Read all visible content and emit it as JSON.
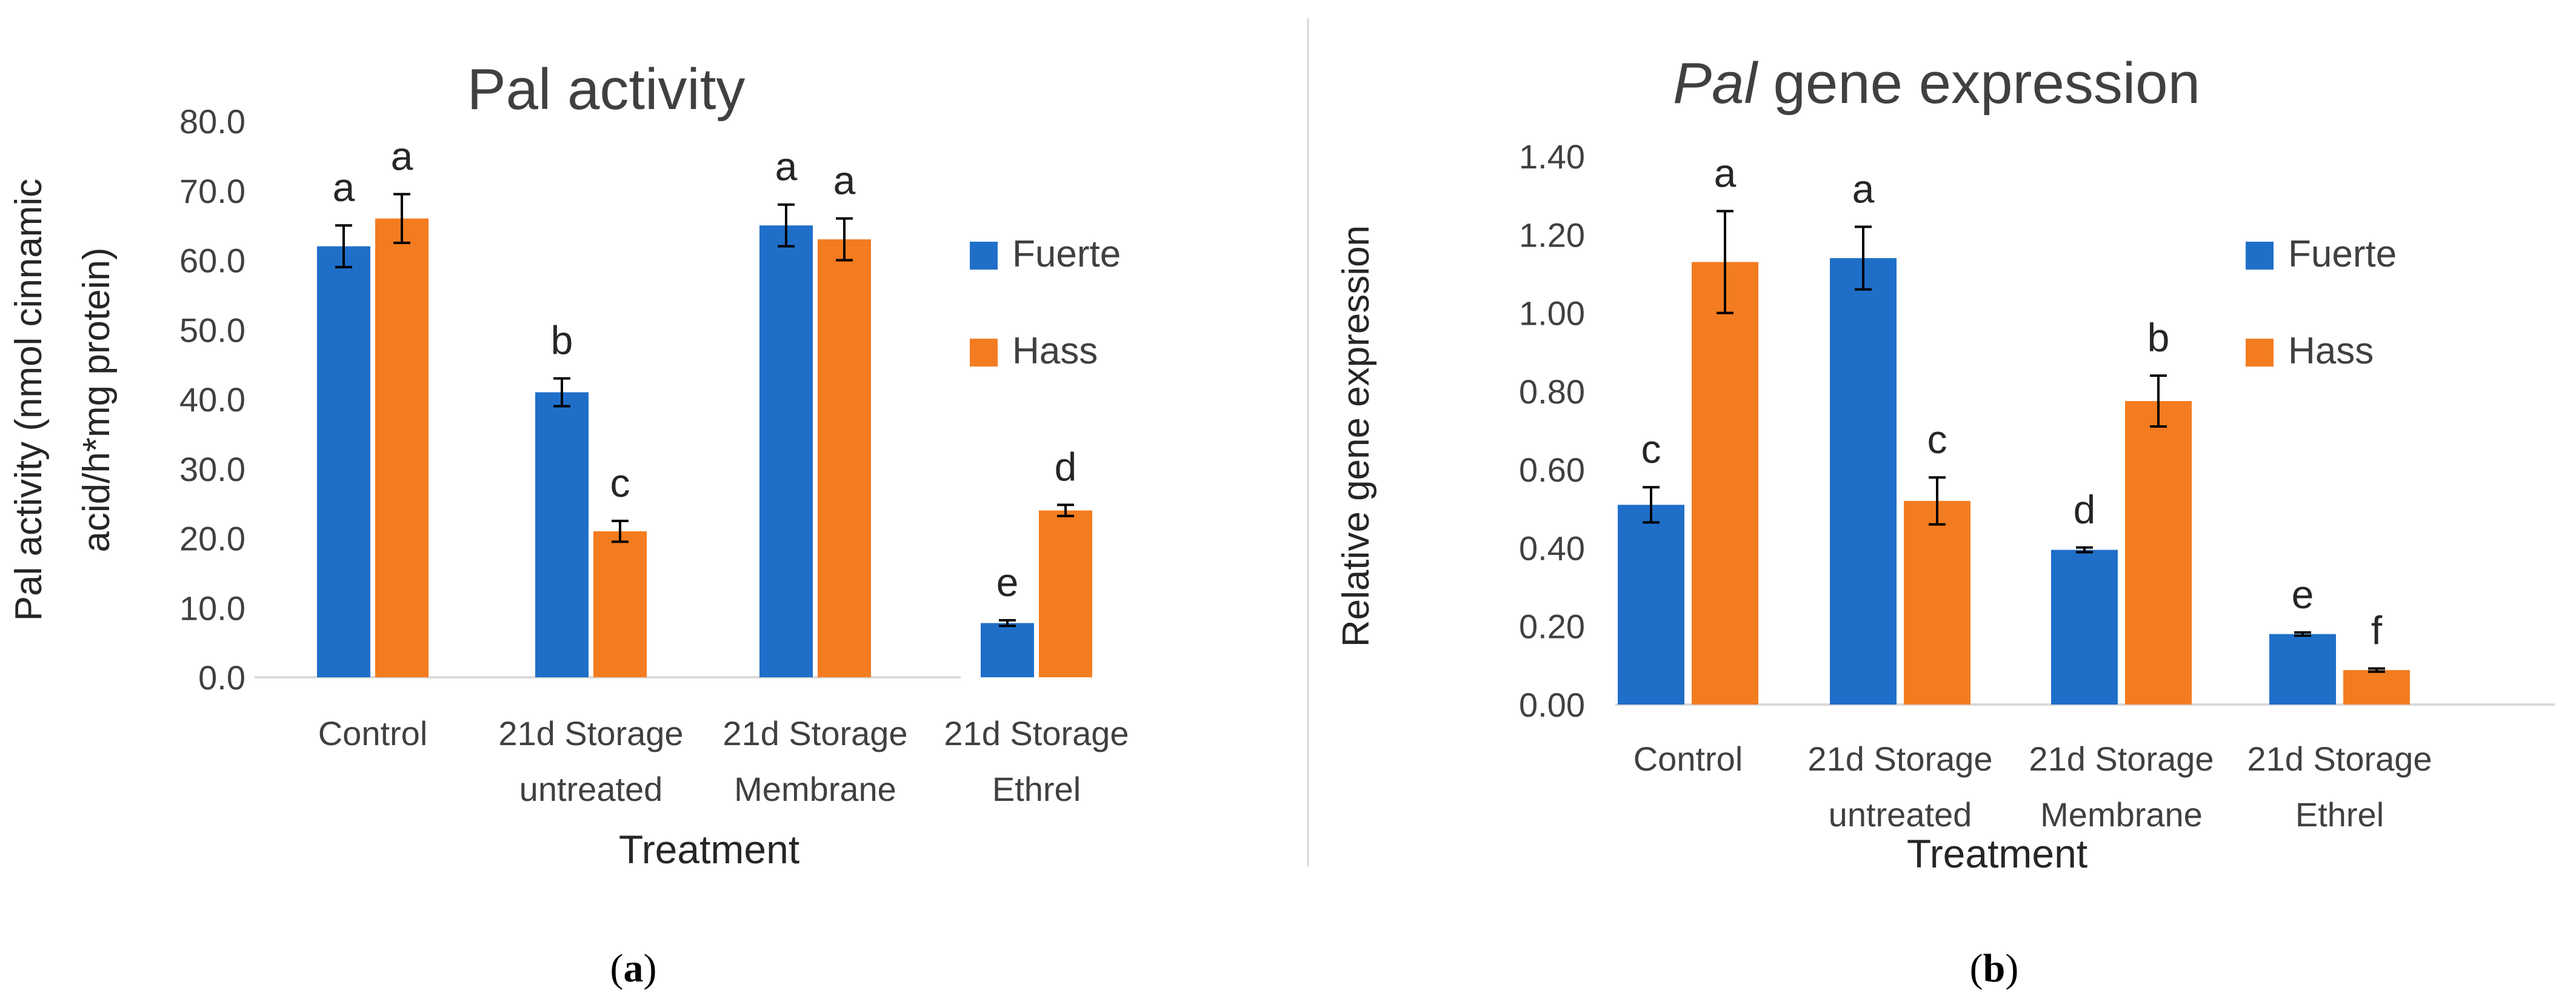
{
  "chart_data": [
    {
      "type": "bar",
      "panel_label": "(a)",
      "title": "Pal activity",
      "title_italic_part": "",
      "xlabel": "Treatment",
      "ylabel_lines": [
        "Pal activity (nmol cinnamic",
        "acid/h*mg protein)"
      ],
      "ylim": [
        0,
        80
      ],
      "ytick_step": 10,
      "ytick_labels": [
        "0.0",
        "10.0",
        "20.0",
        "30.0",
        "40.0",
        "50.0",
        "60.0",
        "70.0",
        "80.0"
      ],
      "categories": [
        [
          "Control"
        ],
        [
          "21d Storage",
          "untreated"
        ],
        [
          "21d Storage",
          "Membrane"
        ],
        [
          "21d Storage",
          "Ethrel"
        ]
      ],
      "series": [
        {
          "name": "Fuerte",
          "color": "#1f6fc9",
          "values": [
            62.0,
            41.0,
            65.0,
            7.8
          ],
          "errors": [
            3.0,
            2.0,
            3.0,
            0.4
          ],
          "sig": [
            "a",
            "b",
            "a",
            "e"
          ]
        },
        {
          "name": "Hass",
          "color": "#f47c20",
          "values": [
            66.0,
            21.0,
            63.0,
            24.0
          ],
          "errors": [
            3.5,
            1.5,
            3.0,
            0.8
          ],
          "sig": [
            "a",
            "c",
            "a",
            "d"
          ]
        }
      ],
      "legend": [
        "Fuerte",
        "Hass"
      ],
      "grid": false
    },
    {
      "type": "bar",
      "panel_label": "(b)",
      "title": "gene expression",
      "title_italic_part": "Pal",
      "xlabel": "Treatment",
      "ylabel_lines": [
        "Relative gene expression"
      ],
      "ylim": [
        0,
        1.4
      ],
      "ytick_step": 0.2,
      "ytick_labels": [
        "0.00",
        "0.20",
        "0.40",
        "0.60",
        "0.80",
        "1.00",
        "1.20",
        "1.40"
      ],
      "categories": [
        [
          "Control"
        ],
        [
          "21d Storage",
          "untreated"
        ],
        [
          "21d Storage",
          "Membrane"
        ],
        [
          "21d Storage",
          "Ethrel"
        ]
      ],
      "series": [
        {
          "name": "Fuerte",
          "color": "#1f6fc9",
          "values": [
            0.51,
            1.14,
            0.395,
            0.18
          ],
          "errors": [
            0.045,
            0.08,
            0.006,
            0.004
          ],
          "sig": [
            "c",
            "a",
            "d",
            "e"
          ]
        },
        {
          "name": "Hass",
          "color": "#f47c20",
          "values": [
            1.13,
            0.52,
            0.775,
            0.088
          ],
          "errors": [
            0.13,
            0.06,
            0.065,
            0.004
          ],
          "sig": [
            "a",
            "c",
            "b",
            "f"
          ]
        }
      ],
      "legend": [
        "Fuerte",
        "Hass"
      ],
      "grid": false
    }
  ]
}
